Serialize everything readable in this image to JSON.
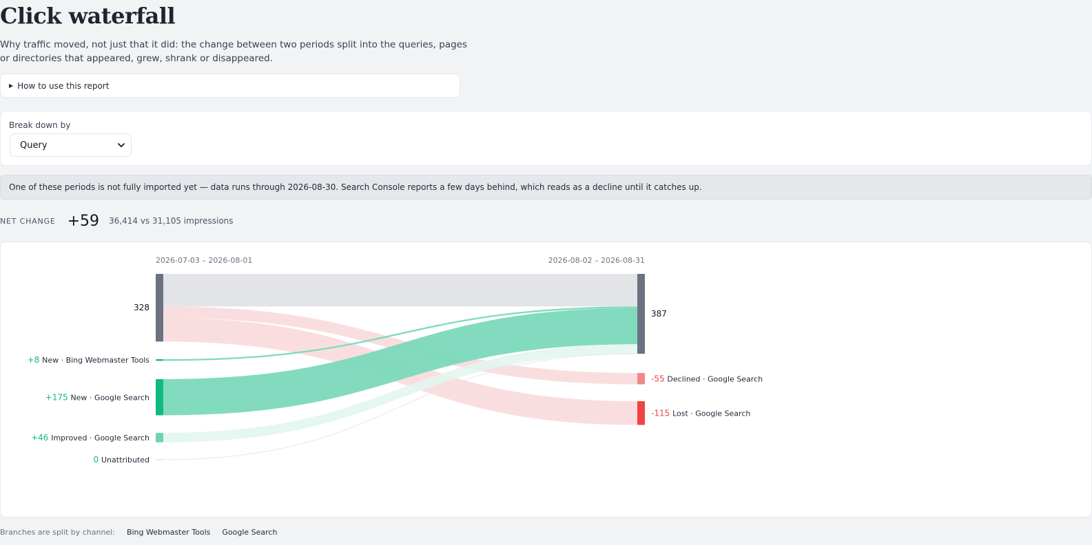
{
  "page": {
    "title": "Click waterfall",
    "subtitle": "Why traffic moved, not just that it did: the change between two periods split into the queries, pages or directories that appeared, grew, shrank or disappeared."
  },
  "how_to": {
    "label": "How to use this report"
  },
  "breakdown": {
    "label": "Break down by",
    "selected": "Query"
  },
  "notice": {
    "text": "One of these periods is not fully imported yet — data runs through 2026-08-30. Search Console reports a few days behind, which reads as a decline until it catches up."
  },
  "summary": {
    "net_label": "NET CHANGE",
    "net_value": "+59",
    "impressions": "36,414 vs 31,105 impressions"
  },
  "chart_data": {
    "type": "sankey",
    "periods": {
      "previous": "2026-07-03 – 2026-08-01",
      "current": "2026-08-02 – 2026-08-31"
    },
    "totals": {
      "previous": 328,
      "current": 387
    },
    "retained": 158,
    "gains": [
      {
        "value": 8,
        "label": "+8",
        "kind": "New",
        "channel": "Bing Webmaster Tools"
      },
      {
        "value": 175,
        "label": "+175",
        "kind": "New",
        "channel": "Google Search"
      },
      {
        "value": 46,
        "label": "+46",
        "kind": "Improved",
        "channel": "Google Search"
      },
      {
        "value": 0,
        "label": "0",
        "kind": "Unattributed",
        "channel": ""
      }
    ],
    "losses": [
      {
        "value": 55,
        "label": "-55",
        "kind": "Declined",
        "channel": "Google Search"
      },
      {
        "value": 115,
        "label": "-115",
        "kind": "Lost",
        "channel": "Google Search"
      }
    ],
    "colors": {
      "total_bar": "#6b7280",
      "retained_band": "#e3e4e7",
      "new_strong": "#10b981",
      "new_band": "#7bd9bb",
      "improved": "#6ed6ae",
      "improved_band": "#e3f5ee",
      "declined": "#f08a8a",
      "lost": "#ef4444",
      "loss_band": "#fadadb",
      "gain_text": "#10b981",
      "loss_text": "#ef4444"
    }
  },
  "footer": {
    "label": "Branches are split by channel:",
    "channels": [
      "Bing Webmaster Tools",
      "Google Search"
    ]
  }
}
